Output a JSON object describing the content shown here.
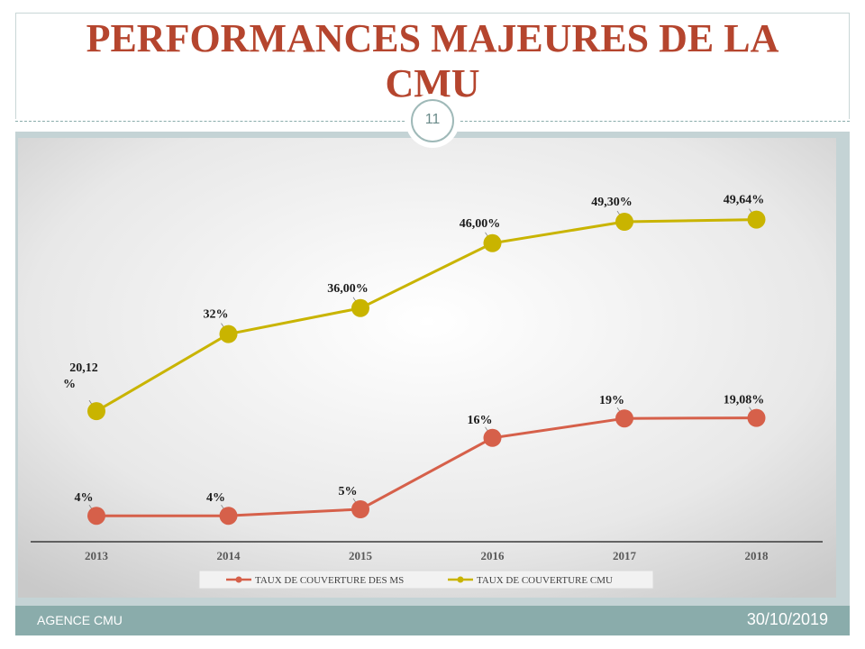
{
  "slide": {
    "title": "PERFORMANCES MAJEURES DE LA CMU",
    "page_number": "11",
    "footer_left": "AGENCE CMU",
    "footer_right": "30/10/2019"
  },
  "colors": {
    "title": "#b5452e",
    "series_ms": "#d6604a",
    "series_cmu": "#c9b400",
    "footer": "#8aacab"
  },
  "chart_data": {
    "type": "line",
    "title": "",
    "xlabel": "",
    "ylabel": "",
    "categories": [
      "2013",
      "2014",
      "2015",
      "2016",
      "2017",
      "2018"
    ],
    "ylim": [
      0,
      55
    ],
    "grid": false,
    "legend_position": "bottom",
    "series": [
      {
        "name": "TAUX DE COUVERTURE DES MS",
        "values": [
          4,
          4,
          5,
          16,
          19,
          19.08
        ],
        "labels": [
          "4%",
          "4%",
          "5%",
          "16%",
          "19%",
          "19,08%"
        ]
      },
      {
        "name": "TAUX DE COUVERTURE CMU",
        "values": [
          20.12,
          32,
          36,
          46,
          49.3,
          49.64
        ],
        "labels": [
          "20,12 %",
          "32%",
          "36,00%",
          "46,00%",
          "49,30%",
          "49,64%"
        ]
      }
    ]
  }
}
